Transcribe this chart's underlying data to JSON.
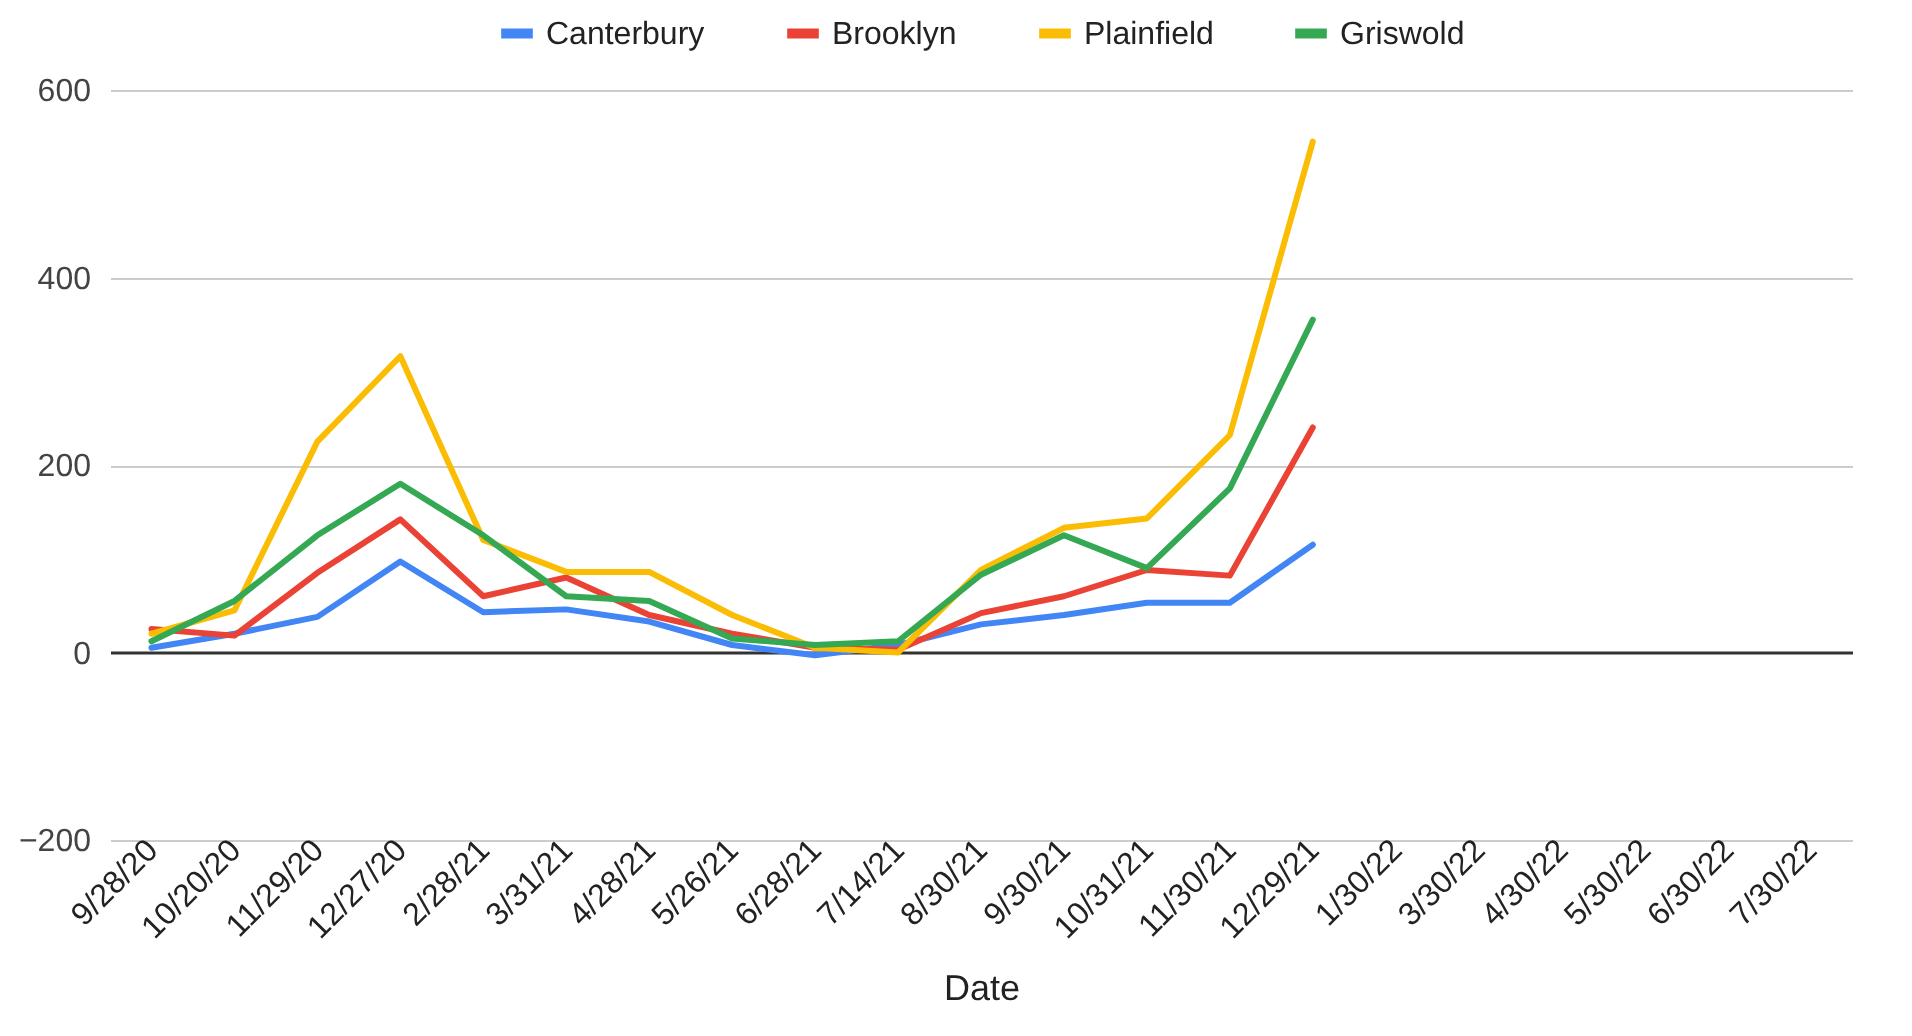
{
  "chart_data": {
    "type": "line",
    "xlabel": "Date",
    "categories": [
      "9/28/20",
      "10/20/20",
      "11/29/20",
      "12/27/20",
      "2/28/21",
      "3/31/21",
      "4/28/21",
      "5/26/21",
      "6/28/21",
      "7/14/21",
      "8/30/21",
      "9/30/21",
      "10/31/21",
      "11/30/21",
      "12/29/21",
      "1/30/22",
      "3/30/22",
      "4/30/22",
      "5/30/22",
      "6/30/22",
      "7/30/22"
    ],
    "series": [
      {
        "name": "Canterbury",
        "color": "#4285f4",
        "values": [
          5,
          20,
          38,
          97,
          43,
          46,
          33,
          8,
          -3,
          8,
          30,
          40,
          53,
          53,
          115,
          null,
          null,
          null,
          null,
          null,
          null
        ]
      },
      {
        "name": "Brooklyn",
        "color": "#ea4335",
        "values": [
          25,
          18,
          85,
          142,
          60,
          80,
          40,
          20,
          5,
          3,
          42,
          60,
          88,
          82,
          240,
          null,
          null,
          null,
          null,
          null,
          null
        ]
      },
      {
        "name": "Plainfield",
        "color": "#fbbc04",
        "values": [
          20,
          45,
          225,
          316,
          120,
          86,
          86,
          40,
          5,
          0,
          88,
          133,
          143,
          232,
          545,
          null,
          null,
          null,
          null,
          null,
          null
        ]
      },
      {
        "name": "Griswold",
        "color": "#34a853",
        "values": [
          12,
          55,
          125,
          180,
          125,
          60,
          55,
          15,
          8,
          12,
          83,
          125,
          90,
          175,
          355,
          null,
          null,
          null,
          null,
          null,
          null
        ]
      }
    ],
    "ylim": [
      -200,
      600
    ],
    "yticks": [
      -200,
      0,
      200,
      400,
      600
    ],
    "grid": "y",
    "legend": "top",
    "line_style": "solid",
    "marker": "none"
  }
}
